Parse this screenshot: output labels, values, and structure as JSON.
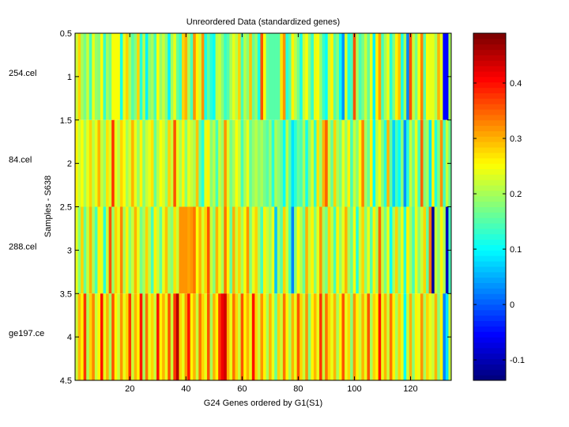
{
  "chart_data": {
    "type": "heatmap",
    "title": "Unreordered Data (standardized genes)",
    "xlabel": "G24 Genes ordered by G1(S1)",
    "ylabel": "Samples - S638",
    "row_labels": [
      "254.cel",
      "84.cel",
      "288.cel",
      "ge197.ce"
    ],
    "xlim": [
      0.5,
      134.5
    ],
    "ylim": [
      0.5,
      4.5
    ],
    "xticks": [
      20,
      40,
      60,
      80,
      100,
      120
    ],
    "yticks": [
      "0.5",
      "1",
      "1.5",
      "2",
      "2.5",
      "3",
      "3.5",
      "4",
      "4.5"
    ],
    "colormap": "jet",
    "clim": [
      -0.137,
      0.49
    ],
    "colorbar_ticks": [
      "-0.1",
      "0",
      "0.1",
      "0.2",
      "0.3",
      "0.4"
    ],
    "grid": false,
    "rows": [
      [
        0.22,
        0.28,
        0.2,
        0.17,
        0.22,
        0.14,
        0.24,
        0.19,
        0.18,
        0.25,
        0.13,
        0.2,
        0.17,
        0.25,
        0.25,
        0.25,
        0.11,
        0.24,
        0.28,
        0.2,
        0.15,
        0.18,
        0.28,
        0.12,
        0.21,
        0.09,
        0.18,
        0.2,
        0.14,
        0.25,
        0.19,
        0.22,
        0.18,
        0.09,
        0.2,
        0.24,
        0.16,
        0.13,
        0.28,
        0.3,
        0.2,
        0.14,
        0.32,
        0.26,
        0.22,
        0.32,
        0.11,
        0.16,
        0.12,
        0.1,
        0.21,
        0.22,
        0.18,
        0.13,
        0.15,
        0.2,
        0.24,
        0.21,
        0.28,
        0.14,
        0.21,
        0.18,
        0.29,
        0.16,
        0.19,
        0.11,
        0.36,
        0.25,
        0.16,
        0.15,
        0.15,
        0.15,
        0.15,
        0.27,
        0.32,
        0.12,
        0.15,
        0.26,
        0.21,
        0.17,
        0.11,
        0.22,
        0.25,
        0.18,
        0.13,
        0.24,
        0.25,
        0.19,
        0.13,
        0.1,
        0.22,
        0.26,
        0.15,
        0.18,
        0.1,
        0.03,
        0.23,
        0.11,
        0.14,
        0.36,
        0.2,
        0.14,
        0.17,
        0.22,
        0.16,
        0.24,
        0.09,
        0.26,
        0.31,
        0.14,
        0.2,
        0.24,
        0.12,
        0.18,
        0.26,
        0.29,
        0.11,
        0.2,
        0.02,
        0.36,
        0.22,
        0.17,
        0.25,
        0.33,
        0.15,
        0.25,
        0.24,
        0.24,
        0.2,
        0.3,
        0.24,
        -0.05,
        -0.05,
        0.2
      ],
      [
        0.26,
        0.22,
        0.25,
        0.2,
        0.24,
        0.28,
        0.21,
        0.24,
        0.3,
        0.22,
        0.19,
        0.27,
        0.23,
        0.38,
        0.24,
        0.21,
        0.28,
        0.25,
        0.2,
        0.23,
        0.3,
        0.24,
        0.19,
        0.26,
        0.18,
        0.22,
        0.24,
        0.27,
        0.16,
        0.21,
        0.25,
        0.23,
        0.19,
        0.28,
        0.22,
        0.36,
        0.24,
        0.2,
        0.26,
        0.18,
        0.24,
        0.22,
        0.2,
        0.29,
        0.16,
        0.12,
        0.24,
        0.26,
        0.18,
        0.21,
        0.14,
        0.22,
        0.19,
        0.32,
        0.23,
        0.17,
        0.2,
        0.25,
        0.22,
        0.14,
        0.2,
        0.24,
        0.16,
        0.19,
        0.21,
        0.18,
        0.2,
        0.17,
        0.15,
        0.19,
        0.12,
        0.2,
        0.18,
        0.16,
        0.1,
        0.21,
        0.15,
        0.08,
        0.12,
        0.16,
        0.14,
        0.2,
        0.11,
        0.18,
        0.23,
        0.13,
        0.27,
        0.19,
        0.3,
        0.35,
        0.22,
        0.16,
        0.28,
        0.2,
        0.17,
        0.24,
        0.19,
        0.26,
        0.14,
        0.22,
        0.18,
        0.25,
        0.33,
        0.2,
        0.16,
        0.26,
        0.1,
        0.21,
        0.24,
        0.18,
        0.12,
        0.3,
        0.16,
        0.07,
        0.14,
        0.1,
        0.18,
        0.03,
        0.12,
        0.22,
        0.16,
        0.24,
        0.14,
        0.35,
        0.18,
        0.2,
        0.08,
        0.26,
        0.12,
        0.18,
        0.32,
        0.14,
        0.22,
        0.16
      ],
      [
        0.24,
        0.18,
        0.28,
        0.16,
        0.22,
        0.3,
        0.2,
        0.14,
        0.26,
        0.24,
        0.12,
        0.22,
        0.36,
        0.19,
        0.28,
        0.24,
        0.33,
        0.2,
        0.26,
        0.18,
        0.22,
        0.3,
        0.24,
        0.17,
        0.2,
        0.28,
        0.21,
        0.14,
        0.26,
        0.22,
        0.16,
        0.24,
        0.29,
        0.2,
        0.18,
        0.27,
        0.22,
        0.32,
        0.32,
        0.32,
        0.31,
        0.32,
        0.34,
        0.25,
        0.3,
        0.23,
        0.28,
        0.36,
        0.22,
        0.18,
        0.3,
        0.24,
        0.2,
        0.34,
        0.26,
        0.16,
        0.3,
        0.22,
        0.28,
        0.2,
        0.25,
        0.32,
        0.18,
        0.24,
        0.28,
        0.2,
        0.14,
        0.26,
        0.22,
        0.19,
        0.24,
        0.06,
        0.2,
        0.15,
        0.28,
        0.22,
        0.14,
        0.02,
        0.18,
        0.25,
        0.21,
        0.16,
        0.3,
        0.22,
        0.26,
        0.18,
        0.24,
        0.32,
        0.2,
        0.17,
        0.28,
        0.22,
        0.14,
        0.26,
        0.19,
        0.24,
        0.3,
        0.2,
        0.16,
        0.25,
        0.12,
        0.22,
        0.28,
        0.18,
        0.24,
        0.15,
        0.26,
        0.2,
        0.35,
        0.22,
        0.17,
        0.24,
        0.1,
        0.2,
        0.28,
        0.18,
        0.24,
        0.12,
        0.26,
        0.2,
        0.14,
        0.24,
        0.18,
        0.22,
        0.28,
        0.16,
        0.34,
        -0.11,
        0.22,
        0.18,
        0.26,
        0.2,
        -0.09,
        0.14
      ],
      [
        0.22,
        0.3,
        0.26,
        0.38,
        0.2,
        0.28,
        0.33,
        0.22,
        0.26,
        0.4,
        0.24,
        0.3,
        0.2,
        0.36,
        0.26,
        0.22,
        0.32,
        0.24,
        0.28,
        0.38,
        0.22,
        0.3,
        0.26,
        0.4,
        0.2,
        0.34,
        0.24,
        0.28,
        0.22,
        0.4,
        0.26,
        0.3,
        0.24,
        0.36,
        0.22,
        0.38,
        0.46,
        0.28,
        0.24,
        0.32,
        0.4,
        0.26,
        0.3,
        0.22,
        0.34,
        0.28,
        0.24,
        0.36,
        0.2,
        0.3,
        0.26,
        0.38,
        0.42,
        0.44,
        0.3,
        0.24,
        0.34,
        0.28,
        0.22,
        0.36,
        0.26,
        0.3,
        0.24,
        0.4,
        0.28,
        0.22,
        0.32,
        0.26,
        0.2,
        0.3,
        0.24,
        0.16,
        0.28,
        0.22,
        0.34,
        0.26,
        0.2,
        0.3,
        0.24,
        0.36,
        0.28,
        0.22,
        0.32,
        0.18,
        0.26,
        0.3,
        0.24,
        0.38,
        0.22,
        0.34,
        0.28,
        0.24,
        0.3,
        0.2,
        0.26,
        0.36,
        0.24,
        0.28,
        0.18,
        0.32,
        0.26,
        0.22,
        0.3,
        0.24,
        0.36,
        0.2,
        0.28,
        0.26,
        0.4,
        0.24,
        0.3,
        0.22,
        0.34,
        0.26,
        0.2,
        0.28,
        0.24,
        0.1,
        0.22,
        0.3,
        0.18,
        0.26,
        0.24,
        0.32,
        0.2,
        0.28,
        0.24,
        0.22,
        0.3,
        0.18,
        0.26,
        0.02,
        0.08,
        0.22
      ]
    ]
  }
}
